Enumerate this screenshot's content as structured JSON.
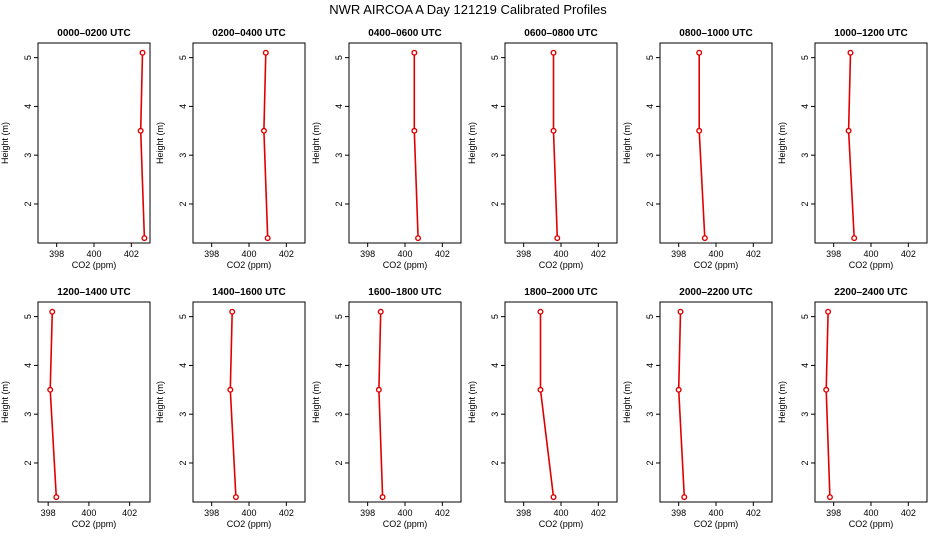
{
  "figure": {
    "title": "NWR AIRCOA A  Day 121219  Calibrated Profiles"
  },
  "style": {
    "line_color": "#e00000",
    "marker_color": "#e00000",
    "axis_color": "#000000",
    "background": "#ffffff"
  },
  "chart_data": [
    {
      "type": "line",
      "title": "0000–0200 UTC",
      "xlabel": "CO2 (ppm)",
      "ylabel": "Height (m)",
      "xlim": [
        397.0,
        403.0
      ],
      "ylim": [
        1.2,
        5.3
      ],
      "xticks": [
        398,
        400,
        402
      ],
      "yticks": [
        2,
        3,
        4,
        5
      ],
      "series": [
        {
          "x": [
            402.7,
            402.5,
            402.6
          ],
          "y": [
            1.3,
            3.5,
            5.1
          ]
        }
      ]
    },
    {
      "type": "line",
      "title": "0200–0400 UTC",
      "xlabel": "CO2 (ppm)",
      "ylabel": "Height (m)",
      "xlim": [
        397.0,
        403.0
      ],
      "ylim": [
        1.2,
        5.3
      ],
      "xticks": [
        398,
        400,
        402
      ],
      "yticks": [
        2,
        3,
        4,
        5
      ],
      "series": [
        {
          "x": [
            401.0,
            400.8,
            400.9
          ],
          "y": [
            1.3,
            3.5,
            5.1
          ]
        }
      ]
    },
    {
      "type": "line",
      "title": "0400–0600 UTC",
      "xlabel": "CO2 (ppm)",
      "ylabel": "Height (m)",
      "xlim": [
        397.0,
        403.0
      ],
      "ylim": [
        1.2,
        5.3
      ],
      "xticks": [
        398,
        400,
        402
      ],
      "yticks": [
        2,
        3,
        4,
        5
      ],
      "series": [
        {
          "x": [
            400.7,
            400.5,
            400.5
          ],
          "y": [
            1.3,
            3.5,
            5.1
          ]
        }
      ]
    },
    {
      "type": "line",
      "title": "0600–0800 UTC",
      "xlabel": "CO2 (ppm)",
      "ylabel": "Height (m)",
      "xlim": [
        397.0,
        403.0
      ],
      "ylim": [
        1.2,
        5.3
      ],
      "xticks": [
        398,
        400,
        402
      ],
      "yticks": [
        2,
        3,
        4,
        5
      ],
      "series": [
        {
          "x": [
            399.8,
            399.6,
            399.6
          ],
          "y": [
            1.3,
            3.5,
            5.1
          ]
        }
      ]
    },
    {
      "type": "line",
      "title": "0800–1000 UTC",
      "xlabel": "CO2 (ppm)",
      "ylabel": "Height (m)",
      "xlim": [
        397.0,
        403.0
      ],
      "ylim": [
        1.2,
        5.3
      ],
      "xticks": [
        398,
        400,
        402
      ],
      "yticks": [
        2,
        3,
        4,
        5
      ],
      "series": [
        {
          "x": [
            399.4,
            399.1,
            399.1
          ],
          "y": [
            1.3,
            3.5,
            5.1
          ]
        }
      ]
    },
    {
      "type": "line",
      "title": "1000–1200 UTC",
      "xlabel": "CO2 (ppm)",
      "ylabel": "Height (m)",
      "xlim": [
        397.0,
        403.0
      ],
      "ylim": [
        1.2,
        5.3
      ],
      "xticks": [
        398,
        400,
        402
      ],
      "yticks": [
        2,
        3,
        4,
        5
      ],
      "series": [
        {
          "x": [
            399.1,
            398.8,
            398.9
          ],
          "y": [
            1.3,
            3.5,
            5.1
          ]
        }
      ]
    },
    {
      "type": "line",
      "title": "1200–1400 UTC",
      "xlabel": "CO2 (ppm)",
      "ylabel": "Height (m)",
      "xlim": [
        397.5,
        403.0
      ],
      "ylim": [
        1.2,
        5.3
      ],
      "xticks": [
        398,
        400,
        402
      ],
      "yticks": [
        2,
        3,
        4,
        5
      ],
      "series": [
        {
          "x": [
            398.4,
            398.1,
            398.2
          ],
          "y": [
            1.3,
            3.5,
            5.1
          ]
        }
      ]
    },
    {
      "type": "line",
      "title": "1400–1600 UTC",
      "xlabel": "CO2 (ppm)",
      "ylabel": "Height (m)",
      "xlim": [
        397.0,
        403.0
      ],
      "ylim": [
        1.2,
        5.3
      ],
      "xticks": [
        398,
        400,
        402
      ],
      "yticks": [
        2,
        3,
        4,
        5
      ],
      "series": [
        {
          "x": [
            399.3,
            399.0,
            399.1
          ],
          "y": [
            1.3,
            3.5,
            5.1
          ]
        }
      ]
    },
    {
      "type": "line",
      "title": "1600–1800 UTC",
      "xlabel": "CO2 (ppm)",
      "ylabel": "Height (m)",
      "xlim": [
        397.0,
        403.0
      ],
      "ylim": [
        1.2,
        5.3
      ],
      "xticks": [
        398,
        400,
        402
      ],
      "yticks": [
        2,
        3,
        4,
        5
      ],
      "series": [
        {
          "x": [
            398.8,
            398.6,
            398.7
          ],
          "y": [
            1.3,
            3.5,
            5.1
          ]
        }
      ]
    },
    {
      "type": "line",
      "title": "1800–2000 UTC",
      "xlabel": "CO2 (ppm)",
      "ylabel": "Height (m)",
      "xlim": [
        397.0,
        403.0
      ],
      "ylim": [
        1.2,
        5.3
      ],
      "xticks": [
        398,
        400,
        402
      ],
      "yticks": [
        2,
        3,
        4,
        5
      ],
      "series": [
        {
          "x": [
            399.6,
            398.9,
            398.9
          ],
          "y": [
            1.3,
            3.5,
            5.1
          ]
        }
      ]
    },
    {
      "type": "line",
      "title": "2000–2200 UTC",
      "xlabel": "CO2 (ppm)",
      "ylabel": "Height (m)",
      "xlim": [
        397.0,
        403.0
      ],
      "ylim": [
        1.2,
        5.3
      ],
      "xticks": [
        398,
        400,
        402
      ],
      "yticks": [
        2,
        3,
        4,
        5
      ],
      "series": [
        {
          "x": [
            398.3,
            398.0,
            398.1
          ],
          "y": [
            1.3,
            3.5,
            5.1
          ]
        }
      ]
    },
    {
      "type": "line",
      "title": "2200–2400 UTC",
      "xlabel": "CO2 (ppm)",
      "ylabel": "Height (m)",
      "xlim": [
        397.0,
        403.0
      ],
      "ylim": [
        1.2,
        5.3
      ],
      "xticks": [
        398,
        400,
        402
      ],
      "yticks": [
        2,
        3,
        4,
        5
      ],
      "series": [
        {
          "x": [
            397.8,
            397.6,
            397.7
          ],
          "y": [
            1.3,
            3.5,
            5.1
          ]
        }
      ]
    }
  ]
}
